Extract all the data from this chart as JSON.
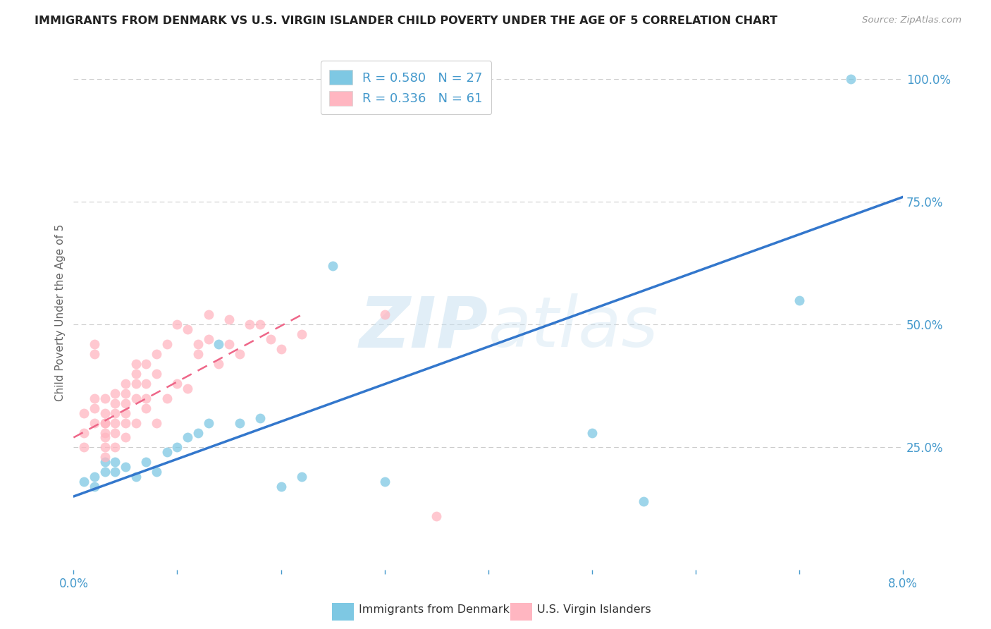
{
  "title": "IMMIGRANTS FROM DENMARK VS U.S. VIRGIN ISLANDER CHILD POVERTY UNDER THE AGE OF 5 CORRELATION CHART",
  "source": "Source: ZipAtlas.com",
  "ylabel_label": "Child Poverty Under the Age of 5",
  "x_min": 0.0,
  "x_max": 0.08,
  "y_min": 0.0,
  "y_max": 1.05,
  "x_ticks": [
    0.0,
    0.01,
    0.02,
    0.03,
    0.04,
    0.05,
    0.06,
    0.07,
    0.08
  ],
  "x_tick_labels": [
    "0.0%",
    "",
    "",
    "",
    "",
    "",
    "",
    "",
    "8.0%"
  ],
  "y_ticks": [
    0.0,
    0.25,
    0.5,
    0.75,
    1.0
  ],
  "y_tick_labels": [
    "",
    "25.0%",
    "50.0%",
    "75.0%",
    "100.0%"
  ],
  "blue_R": 0.58,
  "blue_N": 27,
  "pink_R": 0.336,
  "pink_N": 61,
  "blue_color": "#7ec8e3",
  "pink_color": "#ffb6c1",
  "blue_line_color": "#3377cc",
  "pink_line_color": "#ee6688",
  "axis_color": "#4499cc",
  "watermark_color": "#c5dff0",
  "legend_label_blue": "Immigrants from Denmark",
  "legend_label_pink": "U.S. Virgin Islanders",
  "blue_scatter_x": [
    0.001,
    0.002,
    0.002,
    0.003,
    0.003,
    0.004,
    0.004,
    0.005,
    0.006,
    0.007,
    0.008,
    0.009,
    0.01,
    0.011,
    0.012,
    0.013,
    0.014,
    0.016,
    0.018,
    0.02,
    0.022,
    0.025,
    0.03,
    0.05,
    0.055,
    0.07,
    0.075
  ],
  "blue_scatter_y": [
    0.18,
    0.17,
    0.19,
    0.2,
    0.22,
    0.2,
    0.22,
    0.21,
    0.19,
    0.22,
    0.2,
    0.24,
    0.25,
    0.27,
    0.28,
    0.3,
    0.46,
    0.3,
    0.31,
    0.17,
    0.19,
    0.62,
    0.18,
    0.28,
    0.14,
    0.55,
    1.0
  ],
  "pink_scatter_x": [
    0.001,
    0.001,
    0.001,
    0.002,
    0.002,
    0.002,
    0.002,
    0.002,
    0.003,
    0.003,
    0.003,
    0.003,
    0.003,
    0.003,
    0.003,
    0.003,
    0.004,
    0.004,
    0.004,
    0.004,
    0.004,
    0.004,
    0.005,
    0.005,
    0.005,
    0.005,
    0.005,
    0.005,
    0.006,
    0.006,
    0.006,
    0.006,
    0.006,
    0.007,
    0.007,
    0.007,
    0.007,
    0.008,
    0.008,
    0.008,
    0.009,
    0.009,
    0.01,
    0.01,
    0.011,
    0.011,
    0.012,
    0.012,
    0.013,
    0.013,
    0.014,
    0.015,
    0.015,
    0.016,
    0.017,
    0.018,
    0.019,
    0.02,
    0.022,
    0.03,
    0.035
  ],
  "pink_scatter_y": [
    0.28,
    0.32,
    0.25,
    0.46,
    0.44,
    0.35,
    0.33,
    0.3,
    0.28,
    0.3,
    0.27,
    0.25,
    0.23,
    0.3,
    0.35,
    0.32,
    0.36,
    0.34,
    0.32,
    0.28,
    0.3,
    0.25,
    0.38,
    0.36,
    0.34,
    0.32,
    0.27,
    0.3,
    0.4,
    0.38,
    0.35,
    0.42,
    0.3,
    0.42,
    0.38,
    0.33,
    0.35,
    0.44,
    0.4,
    0.3,
    0.46,
    0.35,
    0.5,
    0.38,
    0.49,
    0.37,
    0.46,
    0.44,
    0.52,
    0.47,
    0.42,
    0.51,
    0.46,
    0.44,
    0.5,
    0.5,
    0.47,
    0.45,
    0.48,
    0.52,
    0.11
  ],
  "blue_trendline_x": [
    0.0,
    0.08
  ],
  "blue_trendline_y": [
    0.15,
    0.76
  ],
  "pink_trendline_x": [
    0.0,
    0.022
  ],
  "pink_trendline_y": [
    0.27,
    0.52
  ],
  "background_color": "#ffffff",
  "grid_color": "#cccccc"
}
